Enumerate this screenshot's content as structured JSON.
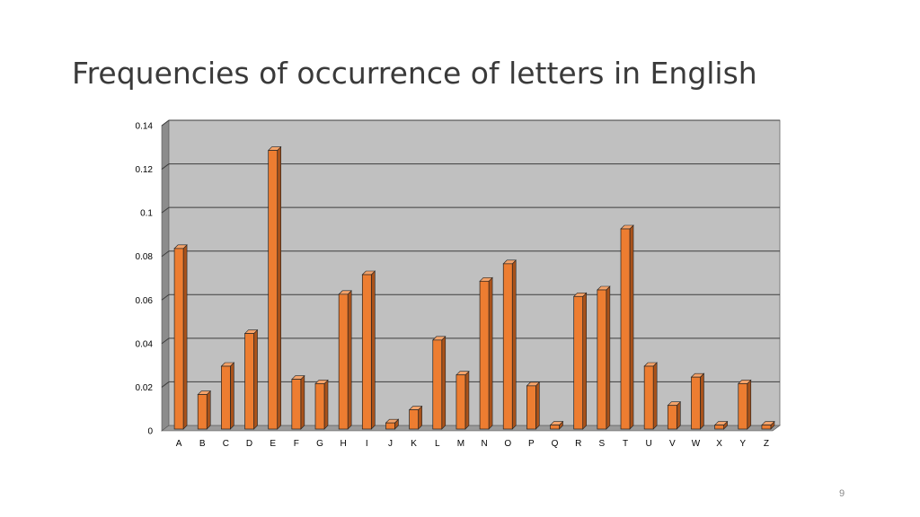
{
  "slide": {
    "title": "Frequencies of occurrence of letters in English",
    "page_number": "9"
  },
  "colors": {
    "bar_front": "#ed7d31",
    "bar_side": "#a9521a",
    "bar_top": "#f4a36a",
    "plot_back": "#c0c0c0",
    "plot_wall": "#8c8c8c"
  },
  "chart_data": {
    "type": "bar",
    "title": "",
    "xlabel": "",
    "ylabel": "",
    "ylim": [
      0,
      0.14
    ],
    "yticks": [
      0,
      0.02,
      0.04,
      0.06,
      0.08,
      0.1,
      0.12,
      0.14
    ],
    "ytick_labels": [
      "0",
      "0.02",
      "0.04",
      "0.06",
      "0.08",
      "0.1",
      "0.12",
      "0.14"
    ],
    "grid": true,
    "legend": "none",
    "categories": [
      "A",
      "B",
      "C",
      "D",
      "E",
      "F",
      "G",
      "H",
      "I",
      "J",
      "K",
      "L",
      "M",
      "N",
      "O",
      "P",
      "Q",
      "R",
      "S",
      "T",
      "U",
      "V",
      "W",
      "X",
      "Y",
      "Z"
    ],
    "values": [
      0.082,
      0.015,
      0.028,
      0.043,
      0.127,
      0.022,
      0.02,
      0.061,
      0.07,
      0.002,
      0.008,
      0.04,
      0.024,
      0.067,
      0.075,
      0.019,
      0.001,
      0.06,
      0.063,
      0.091,
      0.028,
      0.01,
      0.023,
      0.001,
      0.02,
      0.001
    ]
  }
}
